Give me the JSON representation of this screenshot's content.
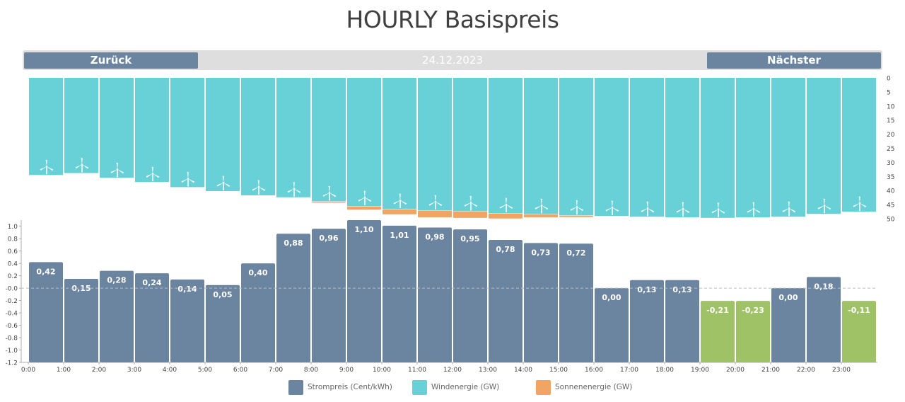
{
  "page": {
    "title": "HOURLY Basispreis"
  },
  "nav": {
    "prev_label": "Zurück",
    "next_label": "Nächster",
    "date": "24.12.2023"
  },
  "colors": {
    "price": "#6b84a0",
    "negative_price": "#9ec265",
    "wind": "#68d1d8",
    "solar": "#f0a565",
    "zero_line": "#bbbbbb"
  },
  "legend": [
    {
      "label": "Strompreis (Cent/kWh)",
      "color": "#6b84a0"
    },
    {
      "label": "Windenergie (GW)",
      "color": "#68d1d8"
    },
    {
      "label": "Sonnenenergie (GW)",
      "color": "#f0a565"
    }
  ],
  "chart_data": [
    {
      "type": "bar",
      "categories": [
        "0:00",
        "1:00",
        "2:00",
        "3:00",
        "4:00",
        "5:00",
        "6:00",
        "7:00",
        "8:00",
        "9:00",
        "10:00",
        "11:00",
        "12:00",
        "13:00",
        "14:00",
        "15:00",
        "16:00",
        "17:00",
        "18:00",
        "19:00",
        "20:00",
        "21:00",
        "22:00",
        "23:00"
      ],
      "series": [
        {
          "name": "Windenergie (GW)",
          "values": [
            34.5,
            33.8,
            35.5,
            37.0,
            38.8,
            40.2,
            41.7,
            42.4,
            43.8,
            45.5,
            46.5,
            47.0,
            47.3,
            48.0,
            48.3,
            48.8,
            49.0,
            49.3,
            49.5,
            49.7,
            49.5,
            49.3,
            48.3,
            47.5
          ]
        },
        {
          "name": "Sonnenenergie (GW)",
          "values": [
            0,
            0,
            0,
            0,
            0,
            0,
            0,
            0,
            0.3,
            1.2,
            1.8,
            2.4,
            2.3,
            1.8,
            1.1,
            0.5,
            0,
            0,
            0,
            0,
            0,
            0,
            0,
            0
          ]
        }
      ],
      "ylim": [
        0,
        50
      ],
      "yticks": [
        0,
        5,
        10,
        15,
        20,
        25,
        30,
        35,
        40,
        45,
        50
      ],
      "y_inverted": true,
      "icon": "wind-turbine-icon"
    },
    {
      "type": "bar",
      "categories": [
        "0:00",
        "1:00",
        "2:00",
        "3:00",
        "4:00",
        "5:00",
        "6:00",
        "7:00",
        "8:00",
        "9:00",
        "10:00",
        "11:00",
        "12:00",
        "13:00",
        "14:00",
        "15:00",
        "16:00",
        "17:00",
        "18:00",
        "19:00",
        "20:00",
        "21:00",
        "22:00",
        "23:00"
      ],
      "series": [
        {
          "name": "Strompreis (Cent/kWh)",
          "values": [
            0.42,
            0.15,
            0.28,
            0.24,
            0.14,
            0.05,
            0.4,
            0.88,
            0.96,
            1.1,
            1.01,
            0.98,
            0.95,
            0.78,
            0.73,
            0.72,
            0.0,
            0.13,
            0.13,
            -0.21,
            -0.23,
            0.0,
            0.18,
            -0.11
          ]
        }
      ],
      "data_labels": [
        "0,42",
        "0,15",
        "0,28",
        "0,24",
        "0,14",
        "0,05",
        "0,40",
        "0,88",
        "0,96",
        "1,10",
        "1,01",
        "0,98",
        "0,95",
        "0,78",
        "0,73",
        "0,72",
        "0,00",
        "0,13",
        "0,13",
        "-0,21",
        "-0,23",
        "0,00",
        "0,18",
        "-0,11"
      ],
      "ytick_labels": [
        "1.0",
        "0.8",
        "0.6",
        "0.4",
        "0.2",
        "-0.0",
        "-0.2",
        "-0.4",
        "-0.6",
        "-0.8",
        "-1.0",
        "-1.2"
      ],
      "ytick_values": [
        1.0,
        0.8,
        0.6,
        0.4,
        0.2,
        0,
        -0.2,
        -0.4,
        -0.6,
        -0.8,
        -1.0,
        -1.2
      ],
      "ylim": [
        -1.2,
        1.1
      ],
      "xtick_labels": [
        "0:00",
        "1:00",
        "2:00",
        "3:00",
        "4:00",
        "5:00",
        "6:00",
        "7:00",
        "8:00",
        "9:00",
        "10:00",
        "11:00",
        "12:00",
        "13:00",
        "14:00",
        "15:00",
        "16:00",
        "17:00",
        "18:00",
        "19:00",
        "20:00",
        "21:00",
        "22:00",
        "23:00"
      ],
      "grid": false
    }
  ]
}
